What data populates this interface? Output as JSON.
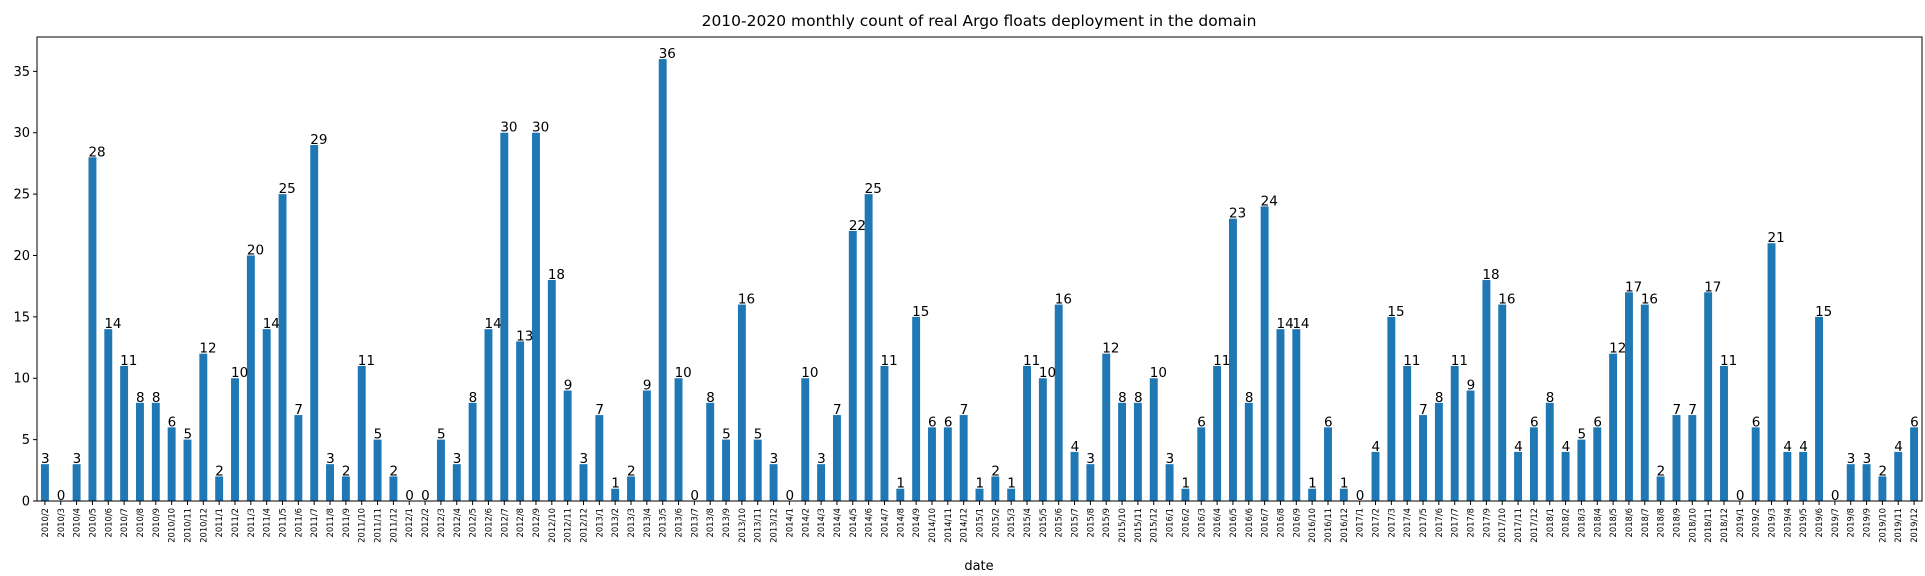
{
  "chart_data": {
    "type": "bar",
    "title": "2010-2020 monthly count of real Argo floats deployment in the domain",
    "xlabel": "date",
    "ylabel": "",
    "ylim": [
      0,
      37.8
    ],
    "yticks": [
      0,
      5,
      10,
      15,
      20,
      25,
      30,
      35
    ],
    "grid": false,
    "legend": "none",
    "bar_color": "#1f77b4",
    "categories": [
      "2010/2",
      "2010/3",
      "2010/4",
      "2010/5",
      "2010/6",
      "2010/7",
      "2010/8",
      "2010/9",
      "2010/10",
      "2010/11",
      "2010/12",
      "2011/1",
      "2011/2",
      "2011/3",
      "2011/4",
      "2011/5",
      "2011/6",
      "2011/7",
      "2011/8",
      "2011/9",
      "2011/10",
      "2011/11",
      "2011/12",
      "2012/1",
      "2012/2",
      "2012/3",
      "2012/4",
      "2012/5",
      "2012/6",
      "2012/7",
      "2012/8",
      "2012/9",
      "2012/10",
      "2012/11",
      "2012/12",
      "2013/1",
      "2013/2",
      "2013/3",
      "2013/4",
      "2013/5",
      "2013/6",
      "2013/7",
      "2013/8",
      "2013/9",
      "2013/10",
      "2013/11",
      "2013/12",
      "2014/1",
      "2014/2",
      "2014/3",
      "2014/4",
      "2014/5",
      "2014/6",
      "2014/7",
      "2014/8",
      "2014/9",
      "2014/10",
      "2014/11",
      "2014/12",
      "2015/1",
      "2015/2",
      "2015/3",
      "2015/4",
      "2015/5",
      "2015/6",
      "2015/7",
      "2015/8",
      "2015/9",
      "2015/10",
      "2015/11",
      "2015/12",
      "2016/1",
      "2016/2",
      "2016/3",
      "2016/4",
      "2016/5",
      "2016/6",
      "2016/7",
      "2016/8",
      "2016/9",
      "2016/10",
      "2016/11",
      "2016/12",
      "2017/1",
      "2017/2",
      "2017/3",
      "2017/4",
      "2017/5",
      "2017/6",
      "2017/7",
      "2017/8",
      "2017/9",
      "2017/10",
      "2017/11",
      "2017/12",
      "2018/1",
      "2018/2",
      "2018/3",
      "2018/4",
      "2018/5",
      "2018/6",
      "2018/7",
      "2018/8",
      "2018/9",
      "2018/10",
      "2018/11",
      "2018/12",
      "2019/1",
      "2019/2",
      "2019/3",
      "2019/4",
      "2019/5",
      "2019/6",
      "2019/7",
      "2019/8",
      "2019/9",
      "2019/10",
      "2019/11",
      "2019/12"
    ],
    "values": [
      3,
      0,
      3,
      28,
      14,
      11,
      8,
      8,
      6,
      5,
      12,
      2,
      10,
      20,
      14,
      25,
      7,
      29,
      3,
      2,
      11,
      5,
      2,
      0,
      0,
      5,
      3,
      8,
      14,
      30,
      13,
      30,
      18,
      9,
      3,
      7,
      1,
      2,
      9,
      36,
      10,
      0,
      8,
      5,
      16,
      5,
      3,
      0,
      10,
      3,
      7,
      22,
      25,
      11,
      1,
      15,
      6,
      6,
      7,
      1,
      2,
      1,
      11,
      10,
      16,
      4,
      3,
      12,
      8,
      8,
      10,
      3,
      1,
      6,
      11,
      23,
      8,
      24,
      14,
      14,
      1,
      6,
      1,
      0,
      4,
      15,
      11,
      7,
      8,
      11,
      9,
      18,
      16,
      4,
      6,
      8,
      4,
      5,
      6,
      12,
      17,
      16,
      2,
      7,
      7,
      17,
      11,
      0,
      6,
      21,
      4,
      4,
      15,
      0,
      3,
      3,
      2,
      4,
      6
    ]
  }
}
